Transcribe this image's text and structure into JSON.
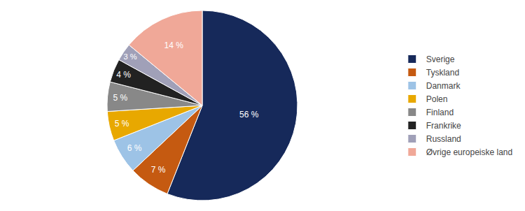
{
  "chart_data": {
    "type": "pie",
    "categories": [
      "Sverige",
      "Tyskland",
      "Danmark",
      "Polen",
      "Finland",
      "Frankrike",
      "Russland",
      "Øvrige europeiske land"
    ],
    "values": [
      56,
      7,
      6,
      5,
      5,
      4,
      3,
      14
    ],
    "value_labels": [
      "56 %",
      "7 %",
      "6 %",
      "5 %",
      "5 %",
      "4 %",
      "3 %",
      "14 %"
    ],
    "colors": [
      "#16295a",
      "#c55a11",
      "#9dc3e6",
      "#e8a800",
      "#888888",
      "#222222",
      "#a0a0b8",
      "#f0a898"
    ],
    "data_labels": true,
    "legend": "right"
  }
}
